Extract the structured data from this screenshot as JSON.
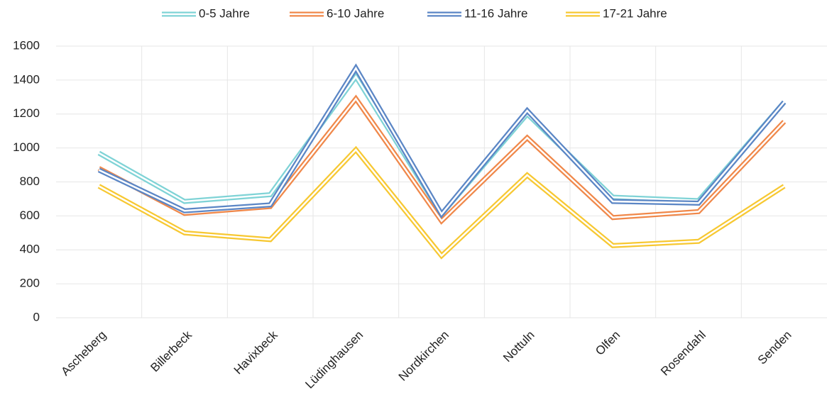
{
  "chart_data": {
    "type": "line",
    "categories": [
      "Ascheberg",
      "Billerbeck",
      "Havixbeck",
      "Lüdinghausen",
      "Nordkirchen",
      "Nottuln",
      "Olfen",
      "Rosendahl",
      "Senden"
    ],
    "series": [
      {
        "name": "0-5 Jahre",
        "color": "#7fd3d6",
        "values": [
          970,
          685,
          725,
          1420,
          610,
          1200,
          710,
          690,
          1270
        ]
      },
      {
        "name": "6-10 Jahre",
        "color": "#f0884a",
        "values": [
          880,
          615,
          655,
          1290,
          570,
          1060,
          590,
          625,
          1155
        ]
      },
      {
        "name": "11-16 Jahre",
        "color": "#5b86c5",
        "values": [
          870,
          630,
          665,
          1470,
          610,
          1220,
          685,
          675,
          1270
        ]
      },
      {
        "name": "17-21 Jahre",
        "color": "#f7c832",
        "values": [
          775,
          500,
          460,
          990,
          365,
          840,
          425,
          450,
          775
        ]
      }
    ],
    "ylim": [
      0,
      1600
    ],
    "yticks": [
      0,
      200,
      400,
      600,
      800,
      1000,
      1200,
      1400,
      1600
    ],
    "grid": true,
    "legend": "top"
  }
}
